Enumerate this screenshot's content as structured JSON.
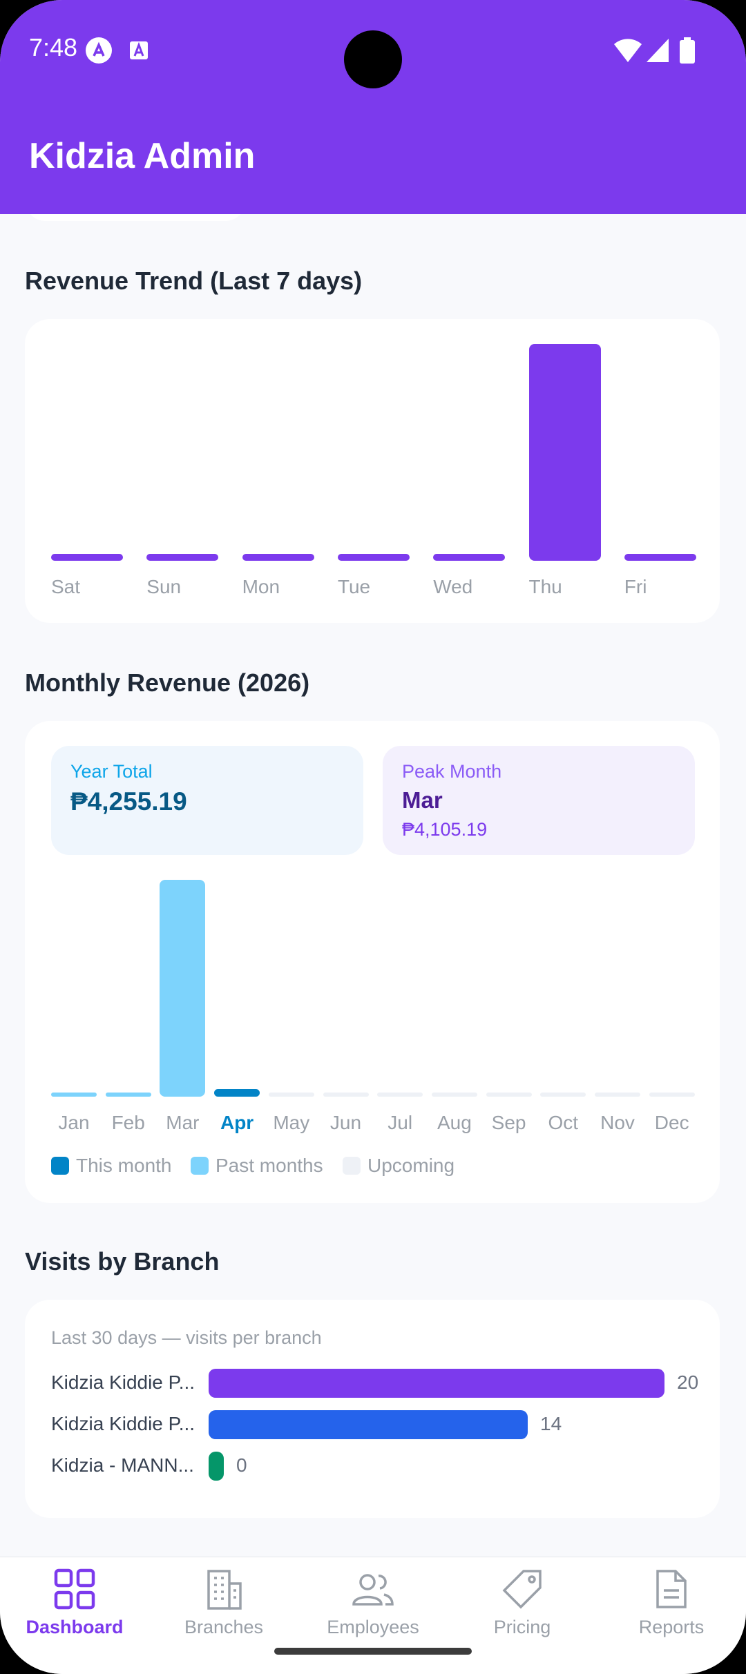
{
  "status_bar": {
    "time": "7:48"
  },
  "app": {
    "title": "Kidzia Admin"
  },
  "weekly": {
    "title": "Revenue Trend (Last 7 days)"
  },
  "monthly": {
    "title": "Monthly Revenue (2026)",
    "year_total_label": "Year Total",
    "year_total_value": "₱4,255.19",
    "peak_label": "Peak Month",
    "peak_month": "Mar",
    "peak_value": "₱4,105.19",
    "legend": {
      "this_month": "This month",
      "past": "Past months",
      "upcoming": "Upcoming"
    }
  },
  "branches": {
    "title": "Visits by Branch",
    "subtitle": "Last 30 days — visits per branch"
  },
  "nav": {
    "items": [
      {
        "label": "Dashboard",
        "icon": "grid-icon"
      },
      {
        "label": "Branches",
        "icon": "building-icon"
      },
      {
        "label": "Employees",
        "icon": "users-icon"
      },
      {
        "label": "Pricing",
        "icon": "tag-icon"
      },
      {
        "label": "Reports",
        "icon": "document-icon"
      }
    ]
  },
  "colors": {
    "brand": "#7c3aed",
    "this_month": "#0284c7",
    "past_month": "#7dd3fc",
    "upcoming": "#eef1f6",
    "branch_1": "#7c3aed",
    "branch_2": "#2563eb",
    "branch_3": "#059669"
  },
  "chart_data": [
    {
      "type": "bar",
      "categories": [
        "Sat",
        "Sun",
        "Mon",
        "Tue",
        "Wed",
        "Thu",
        "Fri"
      ],
      "values": [
        0,
        0,
        0,
        0,
        0,
        1,
        0
      ]
    },
    {
      "type": "bar",
      "categories": [
        "Jan",
        "Feb",
        "Mar",
        "Apr",
        "May",
        "Jun",
        "Jul",
        "Aug",
        "Sep",
        "Oct",
        "Nov",
        "Dec"
      ],
      "values": [
        0,
        0,
        4105.19,
        150,
        0,
        0,
        0,
        0,
        0,
        0,
        0,
        0
      ],
      "highlight": "Apr"
    },
    {
      "type": "bar",
      "orientation": "horizontal",
      "categories": [
        "Kidzia Kiddie P...",
        "Kidzia Kiddie P...",
        "Kidzia - MANN..."
      ],
      "values": [
        20,
        14,
        0
      ]
    }
  ]
}
